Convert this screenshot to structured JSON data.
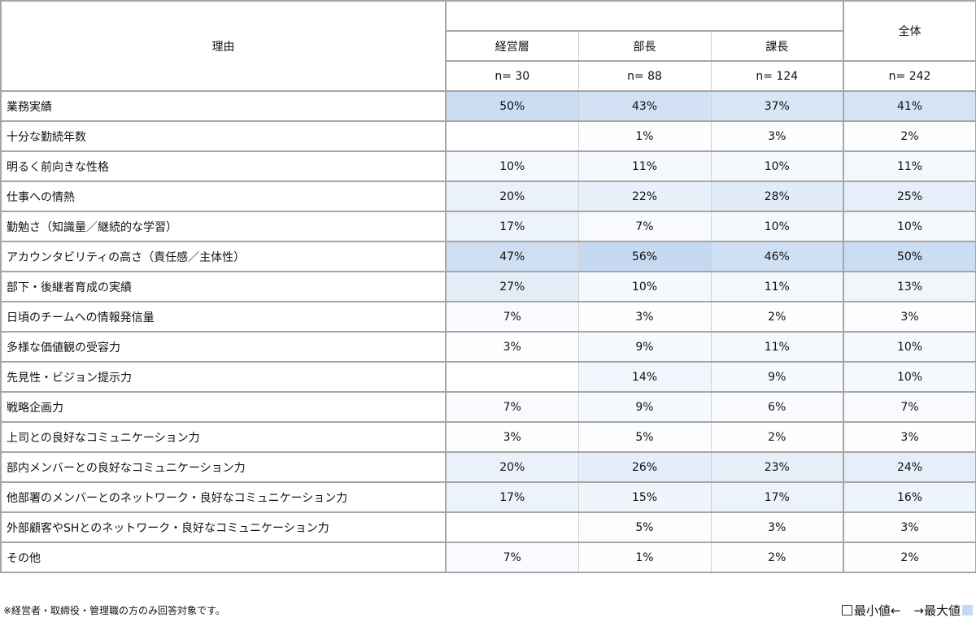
{
  "chart_data": {
    "type": "heatmap",
    "row_header": "理由",
    "group_header": "全体",
    "columns": [
      {
        "label": "経営層",
        "n": "n= 30"
      },
      {
        "label": "部長",
        "n": "n= 88"
      },
      {
        "label": "課長",
        "n": "n= 124"
      },
      {
        "label": "全体",
        "n": "n= 242"
      }
    ],
    "rows": [
      {
        "label": "業務実績",
        "values": [
          "50%",
          "43%",
          "37%",
          "41%"
        ]
      },
      {
        "label": "十分な勤続年数",
        "values": [
          "",
          "1%",
          "3%",
          "2%"
        ]
      },
      {
        "label": "明るく前向きな性格",
        "values": [
          "10%",
          "11%",
          "10%",
          "11%"
        ]
      },
      {
        "label": "仕事への情熱",
        "values": [
          "20%",
          "22%",
          "28%",
          "25%"
        ]
      },
      {
        "label": "勤勉さ（知識量／継続的な学習）",
        "values": [
          "17%",
          "7%",
          "10%",
          "10%"
        ]
      },
      {
        "label": "アカウンタビリティの高さ（責任感／主体性）",
        "values": [
          "47%",
          "56%",
          "46%",
          "50%"
        ]
      },
      {
        "label": "部下・後継者育成の実績",
        "values": [
          "27%",
          "10%",
          "11%",
          "13%"
        ]
      },
      {
        "label": "日頃のチームへの情報発信量",
        "values": [
          "7%",
          "3%",
          "2%",
          "3%"
        ]
      },
      {
        "label": "多様な価値観の受容力",
        "values": [
          "3%",
          "9%",
          "11%",
          "10%"
        ]
      },
      {
        "label": "先見性・ビジョン提示力",
        "values": [
          "",
          "14%",
          "9%",
          "10%"
        ]
      },
      {
        "label": "戦略企画力",
        "values": [
          "7%",
          "9%",
          "6%",
          "7%"
        ]
      },
      {
        "label": "上司との良好なコミュニケーション力",
        "values": [
          "3%",
          "5%",
          "2%",
          "3%"
        ]
      },
      {
        "label": "部内メンバーとの良好なコミュニケーション力",
        "values": [
          "20%",
          "26%",
          "23%",
          "24%"
        ]
      },
      {
        "label": "他部署のメンバーとのネットワーク・良好なコミュニケーション力",
        "values": [
          "17%",
          "15%",
          "17%",
          "16%"
        ]
      },
      {
        "label": "外部顧客やSHとのネットワーク・良好なコミュニケーション力",
        "values": [
          "",
          "5%",
          "3%",
          "3%"
        ]
      },
      {
        "label": "その他",
        "values": [
          "7%",
          "1%",
          "2%",
          "2%"
        ]
      }
    ],
    "color_min": "#ffffff",
    "color_max": "#c5d9f1",
    "value_max": 56
  },
  "footer": {
    "note": "※経営者・取締役・管理職の方のみ回答対象です。",
    "legend_min": "最小値←",
    "legend_max": "→最大値"
  }
}
